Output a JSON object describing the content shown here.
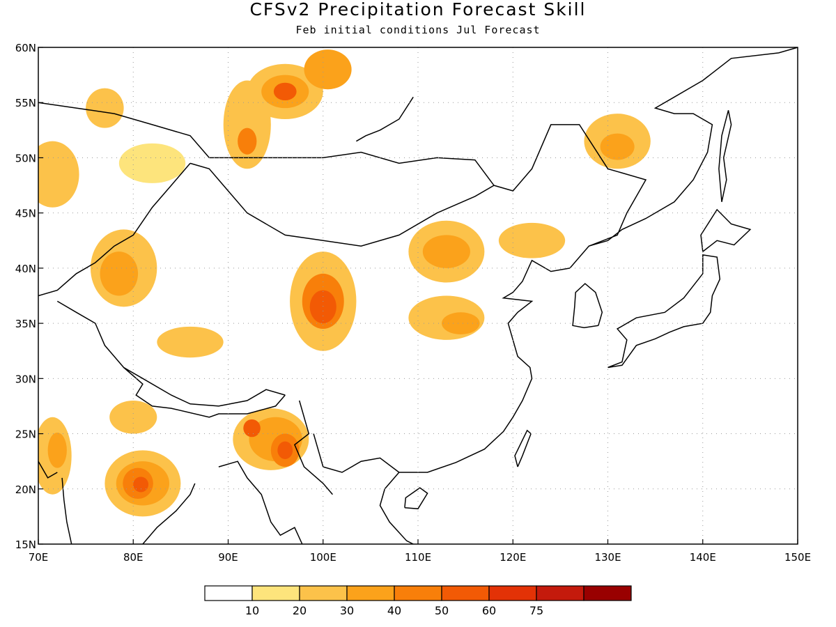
{
  "title": "CFSv2 Precipitation Forecast Skill",
  "subtitle": "Feb initial conditions  Jul Forecast",
  "map": {
    "lon_range": [
      70,
      150
    ],
    "lat_range": [
      15,
      60
    ],
    "x_ticks": [
      "70E",
      "80E",
      "90E",
      "100E",
      "110E",
      "120E",
      "130E",
      "140E",
      "150E"
    ],
    "y_ticks": [
      "15N",
      "20N",
      "25N",
      "30N",
      "35N",
      "40N",
      "45N",
      "50N",
      "55N",
      "60N"
    ],
    "gridlines": "dotted"
  },
  "colorbar": {
    "labels": [
      "10",
      "20",
      "30",
      "40",
      "50",
      "60",
      "75"
    ],
    "colors": [
      "#ffffff",
      "#fde47c",
      "#fcc24a",
      "#fba21b",
      "#f87f0a",
      "#f25a05",
      "#e33206",
      "#c41a0c",
      "#990000"
    ]
  },
  "skill_regions": [
    {
      "lon": 71.5,
      "lat": 48.5,
      "rx": 2.8,
      "ry": 3.0,
      "level": 2
    },
    {
      "lon": 77,
      "lat": 54.5,
      "rx": 2.0,
      "ry": 1.8,
      "level": 2
    },
    {
      "lon": 82,
      "lat": 49.5,
      "rx": 3.5,
      "ry": 1.8,
      "level": 1
    },
    {
      "lon": 79,
      "lat": 40,
      "rx": 3.5,
      "ry": 3.5,
      "level": 2
    },
    {
      "lon": 78.5,
      "lat": 39.5,
      "rx": 2.0,
      "ry": 2.0,
      "level": 3
    },
    {
      "lon": 92,
      "lat": 53,
      "rx": 2.5,
      "ry": 4.0,
      "level": 2
    },
    {
      "lon": 92,
      "lat": 51.5,
      "rx": 1.0,
      "ry": 1.2,
      "level": 4
    },
    {
      "lon": 96,
      "lat": 56,
      "rx": 4.0,
      "ry": 2.5,
      "level": 2
    },
    {
      "lon": 96,
      "lat": 56,
      "rx": 2.5,
      "ry": 1.5,
      "level": 3
    },
    {
      "lon": 96,
      "lat": 56,
      "rx": 1.2,
      "ry": 0.8,
      "level": 5
    },
    {
      "lon": 100.5,
      "lat": 58,
      "rx": 2.5,
      "ry": 1.8,
      "level": 3
    },
    {
      "lon": 100,
      "lat": 37,
      "rx": 3.5,
      "ry": 4.5,
      "level": 2
    },
    {
      "lon": 100,
      "lat": 37,
      "rx": 2.2,
      "ry": 2.5,
      "level": 4
    },
    {
      "lon": 100,
      "lat": 36.5,
      "rx": 1.4,
      "ry": 1.5,
      "level": 5
    },
    {
      "lon": 113,
      "lat": 41.5,
      "rx": 4.0,
      "ry": 2.8,
      "level": 2
    },
    {
      "lon": 113,
      "lat": 41.5,
      "rx": 2.5,
      "ry": 1.5,
      "level": 3
    },
    {
      "lon": 122,
      "lat": 42.5,
      "rx": 3.5,
      "ry": 1.6,
      "level": 2
    },
    {
      "lon": 113,
      "lat": 35.5,
      "rx": 4.0,
      "ry": 2.0,
      "level": 2
    },
    {
      "lon": 114.5,
      "lat": 35,
      "rx": 2.0,
      "ry": 1.0,
      "level": 3
    },
    {
      "lon": 131,
      "lat": 51.5,
      "rx": 3.5,
      "ry": 2.5,
      "level": 2
    },
    {
      "lon": 131,
      "lat": 51,
      "rx": 1.8,
      "ry": 1.2,
      "level": 3
    },
    {
      "lon": 86,
      "lat": 33.3,
      "rx": 3.5,
      "ry": 1.4,
      "level": 2
    },
    {
      "lon": 94.5,
      "lat": 24.5,
      "rx": 4.0,
      "ry": 2.8,
      "level": 2
    },
    {
      "lon": 95,
      "lat": 24.5,
      "rx": 2.8,
      "ry": 2.0,
      "level": 3
    },
    {
      "lon": 96,
      "lat": 23.5,
      "rx": 1.5,
      "ry": 1.5,
      "level": 4
    },
    {
      "lon": 92.5,
      "lat": 25.5,
      "rx": 0.9,
      "ry": 0.8,
      "level": 5
    },
    {
      "lon": 96,
      "lat": 23.5,
      "rx": 0.8,
      "ry": 0.8,
      "level": 5
    },
    {
      "lon": 81,
      "lat": 20.5,
      "rx": 4.0,
      "ry": 3.0,
      "level": 2
    },
    {
      "lon": 81,
      "lat": 20.5,
      "rx": 2.8,
      "ry": 2.0,
      "level": 3
    },
    {
      "lon": 80.5,
      "lat": 20.5,
      "rx": 1.6,
      "ry": 1.4,
      "level": 4
    },
    {
      "lon": 80.8,
      "lat": 20.4,
      "rx": 0.8,
      "ry": 0.7,
      "level": 5
    },
    {
      "lon": 71.5,
      "lat": 23,
      "rx": 2.0,
      "ry": 3.5,
      "level": 2
    },
    {
      "lon": 72,
      "lat": 23.5,
      "rx": 1.0,
      "ry": 1.6,
      "level": 3
    },
    {
      "lon": 80,
      "lat": 26.5,
      "rx": 2.5,
      "ry": 1.5,
      "level": 2
    }
  ]
}
